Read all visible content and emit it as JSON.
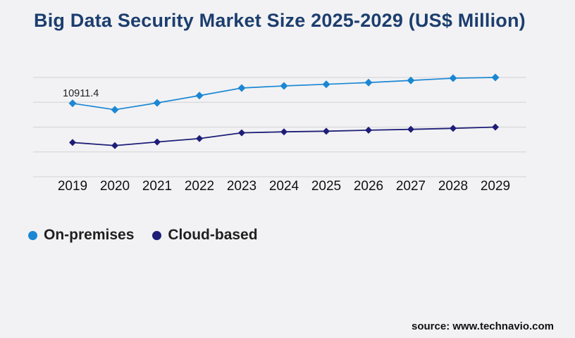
{
  "title": "Big Data Security Market Size 2025-2029 (US$ Million)",
  "source": "source: www.technavio.com",
  "colors": {
    "background": "#f2f2f4",
    "title": "#1c3e6e",
    "gridline": "#d8d8db",
    "axis_text": "#111111",
    "on_premises": "#1b87d3",
    "cloud_based": "#1e1e78"
  },
  "legend": [
    {
      "label": "On-premises",
      "color": "#1b87d3"
    },
    {
      "label": "Cloud-based",
      "color": "#1e1e78"
    }
  ],
  "chart_data": {
    "type": "line",
    "title": "Big Data Security Market Size 2025-2029 (US$ Million)",
    "categories": [
      "2019",
      "2020",
      "2021",
      "2022",
      "2023",
      "2024",
      "2025",
      "2026",
      "2027",
      "2028",
      "2029"
    ],
    "series": [
      {
        "name": "On-premises",
        "color": "#1b87d3",
        "values": [
          10911.4,
          10400,
          10950,
          11540,
          12150,
          12320,
          12450,
          12590,
          12760,
          12940,
          13000
        ]
      },
      {
        "name": "Cloud-based",
        "color": "#1e1e78",
        "values": [
          7760,
          7510,
          7800,
          8080,
          8540,
          8620,
          8670,
          8750,
          8820,
          8900,
          9000
        ]
      }
    ],
    "annotations": [
      {
        "series": "On-premises",
        "x": "2019",
        "text": "10911.4"
      }
    ],
    "xlabel": "",
    "ylabel": "",
    "ylim": [
      5000,
      13000
    ],
    "ytick_step": 2000,
    "grid": "horizontal",
    "marker": "diamond",
    "legend_position": "bottom-left",
    "yaxis_labels_visible": false
  }
}
